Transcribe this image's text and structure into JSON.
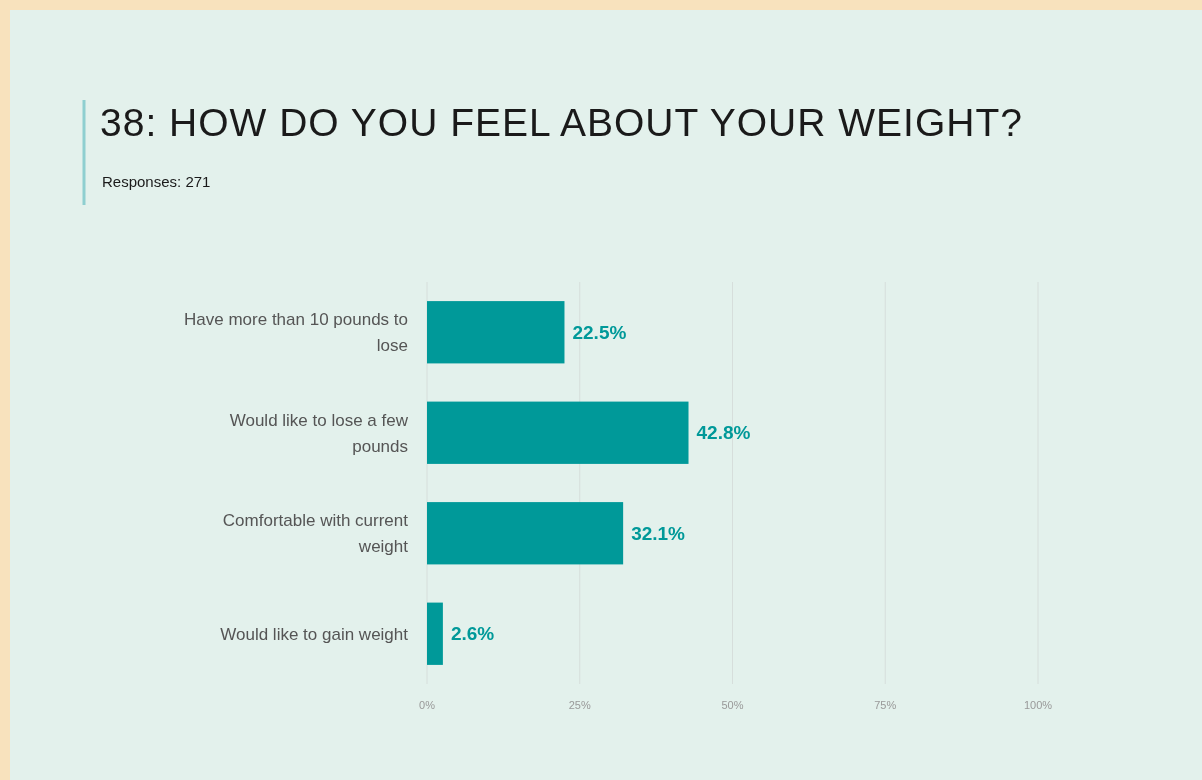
{
  "chart_data": {
    "type": "bar",
    "orientation": "horizontal",
    "title": "38: HOW DO YOU FEEL ABOUT YOUR WEIGHT?",
    "subtitle": "Responses: 271",
    "categories": [
      "Have more than 10 pounds to lose",
      "Would like to lose a few pounds",
      "Comfortable with current weight",
      "Would like to gain weight"
    ],
    "values": [
      22.5,
      42.8,
      32.1,
      2.6
    ],
    "value_labels": [
      "22.5%",
      "42.8%",
      "32.1%",
      "2.6%"
    ],
    "color": "#009999",
    "xlim": [
      0,
      100
    ],
    "xticks": [
      {
        "value": 0,
        "label": "0%"
      },
      {
        "value": 25,
        "label": "25%"
      },
      {
        "value": 50,
        "label": "50%"
      },
      {
        "value": 75,
        "label": "75%"
      },
      {
        "value": 100,
        "label": "100%"
      }
    ],
    "grid": "x"
  }
}
